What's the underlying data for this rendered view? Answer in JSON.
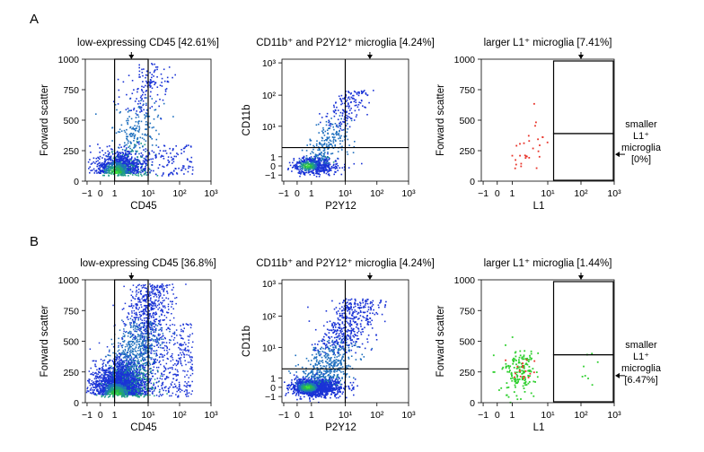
{
  "figure": {
    "rows": [
      {
        "letter": "A",
        "plots": [
          {
            "title": "low-expressing CD45 [42.61%]",
            "xlabel": "CD45",
            "ylabel": "Forward scatter",
            "yticks": [
              "1000",
              "750",
              "500",
              "250",
              "0"
            ],
            "gate_side_label": []
          },
          {
            "title": "CD11b⁺ and P2Y12⁺ microglia [4.24%]",
            "xlabel": "P2Y12",
            "ylabel": "CD11b",
            "yticks": [
              "10³",
              "10²",
              "10¹",
              "1",
              "0",
              "−1"
            ],
            "gate_side_label": []
          },
          {
            "title": "larger L1⁺ microglia [7.41%]",
            "xlabel": "L1",
            "ylabel": "Forward scatter",
            "yticks": [
              "1000",
              "750",
              "500",
              "250",
              "0"
            ],
            "gate_side_label": [
              "smaller",
              "L1⁺",
              "microglia",
              "[0%]"
            ]
          }
        ]
      },
      {
        "letter": "B",
        "plots": [
          {
            "title": "low-expressing CD45 [36.8%]",
            "xlabel": "CD45",
            "ylabel": "Forward scatter",
            "yticks": [
              "1000",
              "750",
              "500",
              "250",
              "0"
            ],
            "gate_side_label": []
          },
          {
            "title": "CD11b⁺ and P2Y12⁺ microglia [4.24%]",
            "xlabel": "P2Y12",
            "ylabel": "CD11b",
            "yticks": [
              "10³",
              "10²",
              "10¹",
              "1",
              "0",
              "−1"
            ],
            "gate_side_label": []
          },
          {
            "title": "larger L1⁺ microglia [1.44%]",
            "xlabel": "L1",
            "ylabel": "Forward scatter",
            "yticks": [
              "1000",
              "750",
              "500",
              "250",
              "0"
            ],
            "gate_side_label": [
              "smaller",
              "L1⁺",
              "microglia",
              "[6.47%]"
            ]
          }
        ]
      }
    ],
    "xticks": [
      "−1",
      "0",
      "1",
      "10¹",
      "10²",
      "10³"
    ]
  },
  "chart_data": [
    {
      "type": "scatter",
      "panel": "A",
      "position": "left",
      "title": "low-expressing CD45 [42.61%]",
      "xlabel": "CD45",
      "ylabel": "Forward scatter",
      "x_scale": "biexponential",
      "xlim": [
        -1,
        1000
      ],
      "ylim": [
        0,
        1000
      ],
      "gates": [
        {
          "type": "rect",
          "x": [
            1,
            10
          ],
          "y": [
            0,
            1000
          ],
          "label": "low-expressing CD45",
          "percent": 42.61
        }
      ],
      "density_coloring": true,
      "colors": {
        "low": "#1a2fd0",
        "mid": "#1f8c8c",
        "high": "#3cd23c"
      }
    },
    {
      "type": "scatter",
      "panel": "A",
      "position": "middle",
      "title": "CD11b⁺ and P2Y12⁺ microglia [4.24%]",
      "xlabel": "P2Y12",
      "ylabel": "CD11b",
      "x_scale": "biexponential",
      "y_scale": "biexponential",
      "xlim": [
        -1,
        1000
      ],
      "ylim": [
        -1,
        1000
      ],
      "gates": [
        {
          "type": "quadrant",
          "x": 10,
          "y": 2,
          "label": "CD11b⁺ and P2Y12⁺ microglia",
          "percent": 4.24
        }
      ],
      "density_coloring": true
    },
    {
      "type": "scatter",
      "panel": "A",
      "position": "right",
      "title": "larger L1⁺ microglia [7.41%]",
      "xlabel": "L1",
      "ylabel": "Forward scatter",
      "x_scale": "biexponential",
      "xlim": [
        -1,
        1000
      ],
      "ylim": [
        0,
        1000
      ],
      "gates": [
        {
          "type": "rect",
          "x": [
            15,
            1000
          ],
          "y": [
            390,
            1000
          ],
          "label": "larger L1⁺ microglia",
          "percent": 7.41
        },
        {
          "type": "rect",
          "x": [
            15,
            1000
          ],
          "y": [
            0,
            390
          ],
          "label": "smaller L1⁺ microglia",
          "percent": 0
        }
      ],
      "point_color": "#e8342a"
    },
    {
      "type": "scatter",
      "panel": "B",
      "position": "left",
      "title": "low-expressing CD45 [36.8%]",
      "xlabel": "CD45",
      "ylabel": "Forward scatter",
      "x_scale": "biexponential",
      "xlim": [
        -1,
        1000
      ],
      "ylim": [
        0,
        1000
      ],
      "gates": [
        {
          "type": "rect",
          "x": [
            1,
            10
          ],
          "y": [
            0,
            1000
          ],
          "label": "low-expressing CD45",
          "percent": 36.8
        }
      ],
      "density_coloring": true
    },
    {
      "type": "scatter",
      "panel": "B",
      "position": "middle",
      "title": "CD11b⁺ and P2Y12⁺ microglia [4.24%]",
      "xlabel": "P2Y12",
      "ylabel": "CD11b",
      "x_scale": "biexponential",
      "y_scale": "biexponential",
      "xlim": [
        -1,
        1000
      ],
      "ylim": [
        -1,
        1000
      ],
      "gates": [
        {
          "type": "quadrant",
          "x": 10,
          "y": 2,
          "label": "CD11b⁺ and P2Y12⁺ microglia",
          "percent": 4.24
        }
      ],
      "density_coloring": true
    },
    {
      "type": "scatter",
      "panel": "B",
      "position": "right",
      "title": "larger L1⁺ microglia [1.44%]",
      "xlabel": "L1",
      "ylabel": "Forward scatter",
      "x_scale": "biexponential",
      "xlim": [
        -1,
        1000
      ],
      "ylim": [
        0,
        1000
      ],
      "gates": [
        {
          "type": "rect",
          "x": [
            15,
            1000
          ],
          "y": [
            390,
            1000
          ],
          "label": "larger L1⁺ microglia",
          "percent": 1.44
        },
        {
          "type": "rect",
          "x": [
            15,
            1000
          ],
          "y": [
            0,
            390
          ],
          "label": "smaller L1⁺ microglia",
          "percent": 6.47
        }
      ],
      "point_color": "#2fcf2f",
      "highlight_color": "#e8342a"
    }
  ]
}
